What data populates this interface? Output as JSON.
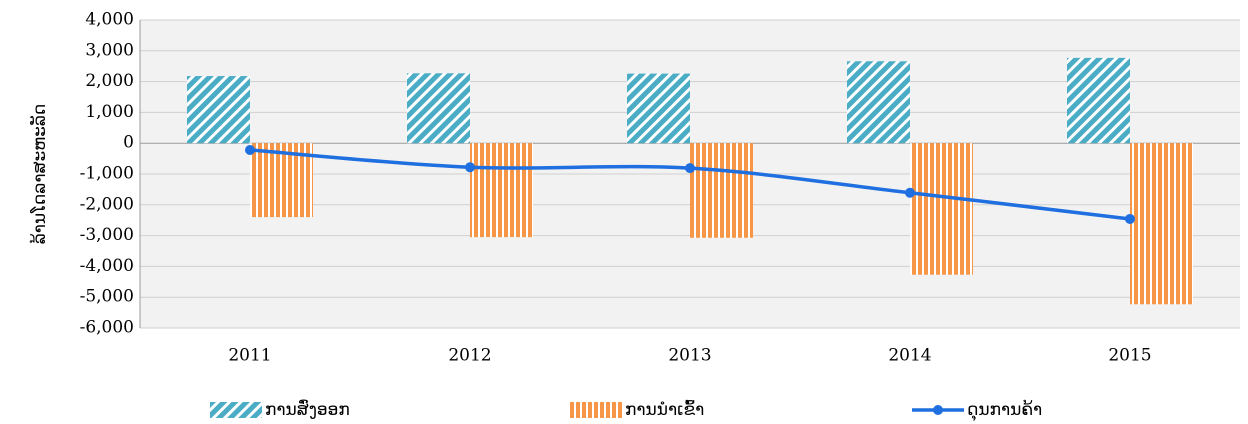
{
  "chart_data": {
    "type": "bar-line",
    "y_label": "ລ້ານໂດລາສະຫະລັດ",
    "categories": [
      "2011",
      "2012",
      "2013",
      "2014",
      "2015"
    ],
    "series": [
      {
        "name": "ການສົ່ງອອກ",
        "color": "#4bacc6",
        "type": "bar",
        "values": [
          2180,
          2270,
          2260,
          2660,
          2770
        ]
      },
      {
        "name": "ການນຳເຂົ້າ",
        "color": "#f79646",
        "type": "bar",
        "values": [
          -2400,
          -3050,
          -3070,
          -4270,
          -5230
        ]
      },
      {
        "name": "ດຸນການຄ້າ",
        "color": "#1f6fe0",
        "type": "line",
        "values": [
          -220,
          -780,
          -810,
          -1610,
          -2460
        ]
      }
    ],
    "ylim": [
      -6000,
      4000
    ],
    "yticks": [
      {
        "value": -6000,
        "label": "-6,000"
      },
      {
        "value": -5000,
        "label": "-5,000"
      },
      {
        "value": -4000,
        "label": "-4,000"
      },
      {
        "value": -3000,
        "label": "-3,000"
      },
      {
        "value": -2000,
        "label": "-2,000"
      },
      {
        "value": -1000,
        "label": "-1,000"
      },
      0,
      {
        "value": 1000,
        "label": "1,000"
      },
      {
        "value": 2000,
        "label": "2,000"
      },
      {
        "value": 3000,
        "label": "3,000"
      },
      {
        "value": 4000,
        "label": "4,000"
      }
    ],
    "grid": true,
    "legend": "bottom"
  }
}
